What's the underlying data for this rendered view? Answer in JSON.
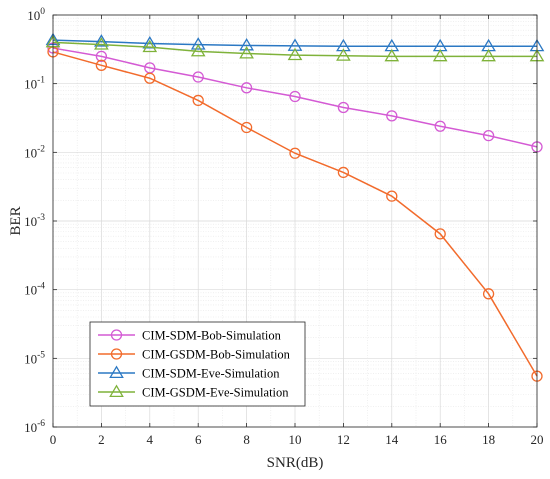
{
  "chart_data": {
    "type": "line",
    "xlabel": "SNR(dB)",
    "ylabel": "BER",
    "x": [
      0,
      2,
      4,
      6,
      8,
      10,
      12,
      14,
      16,
      18,
      20
    ],
    "xlim": [
      0,
      20
    ],
    "ylim": [
      1e-06,
      1
    ],
    "yscale": "log",
    "grid": true,
    "legend_position": "bottom-left",
    "x_tick_labels": [
      "0",
      "2",
      "4",
      "6",
      "8",
      "10",
      "12",
      "14",
      "16",
      "18",
      "20"
    ],
    "y_ticks": [
      {
        "base": "10",
        "exp": "0"
      },
      {
        "base": "10",
        "exp": "-1"
      },
      {
        "base": "10",
        "exp": "-2"
      },
      {
        "base": "10",
        "exp": "-3"
      },
      {
        "base": "10",
        "exp": "-4"
      },
      {
        "base": "10",
        "exp": "-5"
      },
      {
        "base": "10",
        "exp": "-6"
      }
    ],
    "series": [
      {
        "name": "CIM-SDM-Bob-Simulation",
        "color": "#d45ad4",
        "marker": "circle",
        "values": [
          0.33,
          0.25,
          0.17,
          0.125,
          0.087,
          0.065,
          0.045,
          0.034,
          0.024,
          0.0175,
          0.012
        ]
      },
      {
        "name": "CIM-GSDM-Bob-Simulation",
        "color": "#f26b2c",
        "marker": "circle",
        "values": [
          0.29,
          0.185,
          0.12,
          0.057,
          0.023,
          0.0097,
          0.0051,
          0.0023,
          0.00065,
          8.7e-05,
          5.5e-06
        ]
      },
      {
        "name": "CIM-SDM-Eve-Simulation",
        "color": "#2b78c3",
        "marker": "triangle",
        "values": [
          0.43,
          0.41,
          0.385,
          0.37,
          0.36,
          0.355,
          0.35,
          0.35,
          0.35,
          0.35,
          0.35
        ]
      },
      {
        "name": "CIM-GSDM-Eve-Simulation",
        "color": "#7fb23a",
        "marker": "triangle",
        "values": [
          0.4,
          0.37,
          0.34,
          0.295,
          0.275,
          0.26,
          0.255,
          0.25,
          0.25,
          0.25,
          0.25
        ]
      }
    ]
  }
}
